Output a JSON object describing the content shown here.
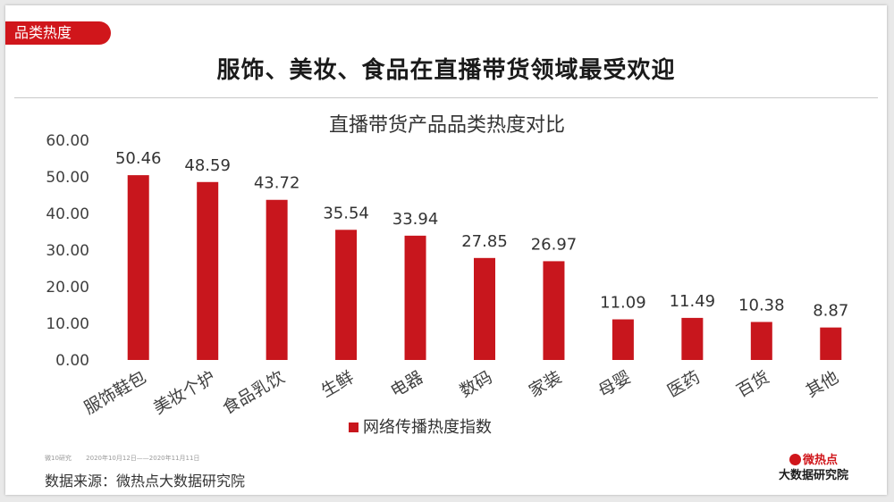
{
  "header": {
    "tag": "品类热度",
    "headline": "服饰、美妆、食品在直播带货领域最受欢迎"
  },
  "chart_data": {
    "type": "bar",
    "title": "直播带货产品品类热度对比",
    "categories": [
      "服饰鞋包",
      "美妆个护",
      "食品乳饮",
      "生鲜",
      "电器",
      "数码",
      "家装",
      "母婴",
      "医药",
      "百货",
      "其他"
    ],
    "series": [
      {
        "name": "网络传播热度指数",
        "values": [
          50.46,
          48.59,
          43.72,
          35.54,
          33.94,
          27.85,
          26.97,
          11.09,
          11.49,
          10.38,
          8.87
        ],
        "color": "#c8161d"
      }
    ],
    "value_labels": [
      "50.46",
      "48.59",
      "43.72",
      "35.54",
      "33.94",
      "27.85",
      "26.97",
      "11.09",
      "11.49",
      "10.38",
      "8.87"
    ],
    "y_ticks": [
      "0.00",
      "10.00",
      "20.00",
      "30.00",
      "40.00",
      "50.00",
      "60.00"
    ],
    "ylim": [
      0,
      60
    ],
    "xlabel": "",
    "ylabel": "",
    "grid": false,
    "legend_position": "bottom",
    "x_tick_rotation": "diagonal"
  },
  "footnote": {
    "brand": "微10研究",
    "period": "2020年10月12日——2020年11月11日"
  },
  "source": "数据来源：微热点大数据研究院",
  "logo": {
    "line1": "微热点",
    "line2": "大数据研究院"
  },
  "colors": {
    "accent": "#d0161b",
    "bar": "#c8161d"
  }
}
